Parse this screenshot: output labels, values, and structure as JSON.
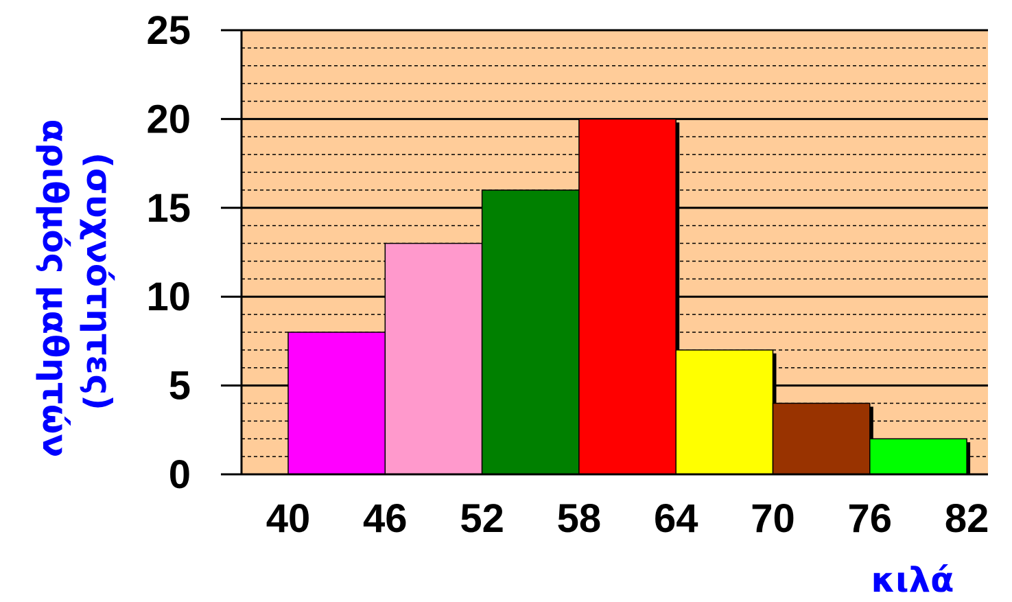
{
  "chart_data": {
    "type": "bar",
    "subtype": "histogram",
    "bin_edges": [
      40,
      46,
      52,
      58,
      64,
      70,
      76,
      82
    ],
    "values": [
      8,
      13,
      16,
      20,
      7,
      4,
      2
    ],
    "bar_colors": [
      "#ff00ff",
      "#ff99cc",
      "#008000",
      "#ff0000",
      "#ffff00",
      "#993300",
      "#00ff00"
    ],
    "ylim": [
      0,
      25
    ],
    "yticks": [
      0,
      5,
      10,
      15,
      20,
      25
    ],
    "ylabel_line1": "αριθμός μαθητών",
    "ylabel_line2": "(συχνότητες)",
    "xlabel": "κιλά",
    "plot_background": "#ffcc99",
    "axis_title_color": "#0000ff",
    "grid": true
  }
}
